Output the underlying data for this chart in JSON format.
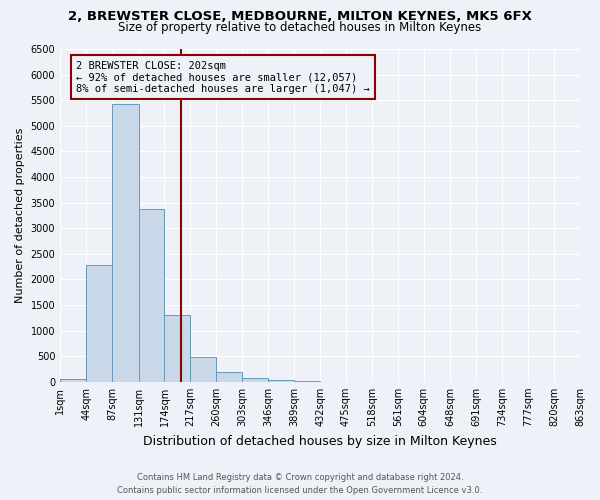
{
  "title": "2, BREWSTER CLOSE, MEDBOURNE, MILTON KEYNES, MK5 6FX",
  "subtitle": "Size of property relative to detached houses in Milton Keynes",
  "xlabel": "Distribution of detached houses by size in Milton Keynes",
  "ylabel": "Number of detached properties",
  "bar_color": "#c8d8e8",
  "bar_edge_color": "#6699bb",
  "background_color": "#eef2f8",
  "grid_color": "#ffffff",
  "bin_edges": [
    1,
    44,
    87,
    131,
    174,
    217,
    260,
    303,
    346,
    389,
    432,
    475,
    518,
    561,
    604,
    648,
    691,
    734,
    777,
    820,
    863
  ],
  "bin_labels": [
    "1sqm",
    "44sqm",
    "87sqm",
    "131sqm",
    "174sqm",
    "217sqm",
    "260sqm",
    "303sqm",
    "346sqm",
    "389sqm",
    "432sqm",
    "475sqm",
    "518sqm",
    "561sqm",
    "604sqm",
    "648sqm",
    "691sqm",
    "734sqm",
    "777sqm",
    "820sqm",
    "863sqm"
  ],
  "bar_heights": [
    60,
    2280,
    5430,
    3380,
    1310,
    480,
    195,
    80,
    30,
    10,
    5,
    0,
    0,
    0,
    0,
    0,
    0,
    0,
    0,
    0
  ],
  "property_line_x": 202,
  "property_line_color": "#8b0000",
  "annotation_line1": "2 BREWSTER CLOSE: 202sqm",
  "annotation_line2": "← 92% of detached houses are smaller (12,057)",
  "annotation_line3": "8% of semi-detached houses are larger (1,047) →",
  "annotation_box_color": "#8b0000",
  "ylim": [
    0,
    6500
  ],
  "yticks": [
    0,
    500,
    1000,
    1500,
    2000,
    2500,
    3000,
    3500,
    4000,
    4500,
    5000,
    5500,
    6000,
    6500
  ],
  "footer_line1": "Contains HM Land Registry data © Crown copyright and database right 2024.",
  "footer_line2": "Contains public sector information licensed under the Open Government Licence v3.0.",
  "title_fontsize": 9.5,
  "subtitle_fontsize": 8.5,
  "ylabel_fontsize": 8,
  "xlabel_fontsize": 9,
  "tick_fontsize": 7,
  "footer_fontsize": 6
}
